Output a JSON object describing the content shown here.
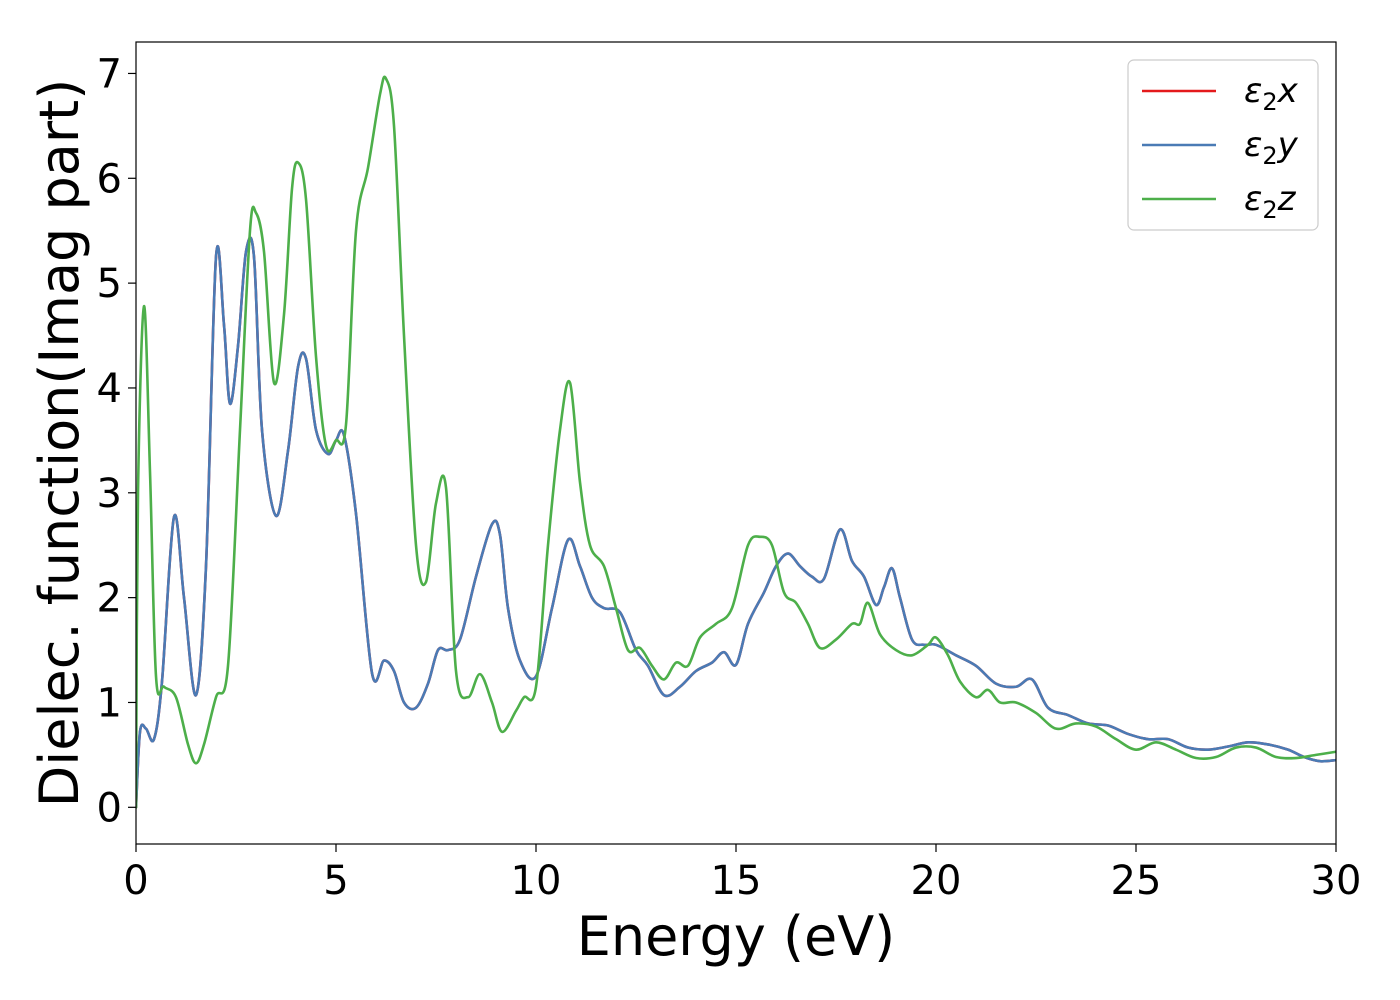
{
  "chart_data": {
    "type": "line",
    "title": "",
    "xlabel": "Energy (eV)",
    "ylabel": "Dielec. function(Imag part)",
    "xlim": [
      0,
      30
    ],
    "ylim": [
      -0.35,
      7.3
    ],
    "xticks": [
      0,
      5,
      10,
      15,
      20,
      25,
      30
    ],
    "yticks": [
      0,
      1,
      2,
      3,
      4,
      5,
      6,
      7
    ],
    "grid": false,
    "legend_position": "top-right",
    "series": [
      {
        "name": "ε2x",
        "legend": {
          "main": "ε",
          "sub": "2",
          "axis": "x"
        },
        "color": "#e41a1c",
        "x": [
          0,
          0.1,
          0.25,
          0.45,
          0.65,
          0.95,
          1.2,
          1.5,
          1.75,
          2.0,
          2.2,
          2.35,
          2.55,
          2.75,
          2.95,
          3.15,
          3.5,
          3.8,
          4.05,
          4.25,
          4.5,
          4.8,
          5.0,
          5.2,
          5.5,
          5.9,
          6.2,
          6.45,
          6.7,
          7.0,
          7.3,
          7.55,
          7.8,
          8.1,
          8.5,
          8.9,
          9.1,
          9.3,
          9.6,
          10.0,
          10.4,
          10.8,
          11.1,
          11.4,
          11.7,
          12.1,
          12.5,
          12.8,
          13.2,
          13.6,
          14.0,
          14.4,
          14.7,
          15.0,
          15.3,
          15.7,
          16.0,
          16.3,
          16.6,
          16.9,
          17.2,
          17.6,
          17.9,
          18.2,
          18.5,
          18.7,
          18.9,
          19.1,
          19.4,
          19.7,
          20.0,
          20.5,
          21.0,
          21.5,
          22.0,
          22.4,
          22.8,
          23.3,
          23.8,
          24.3,
          24.8,
          25.3,
          25.8,
          26.3,
          26.8,
          27.3,
          27.8,
          28.3,
          28.8,
          29.2,
          29.6,
          30.0
        ],
        "values": [
          0.0,
          0.72,
          0.75,
          0.65,
          1.2,
          2.77,
          2.0,
          1.07,
          2.3,
          5.25,
          4.6,
          3.85,
          4.4,
          5.3,
          5.25,
          3.6,
          2.78,
          3.4,
          4.2,
          4.28,
          3.6,
          3.37,
          3.5,
          3.55,
          2.8,
          1.28,
          1.4,
          1.3,
          1.0,
          0.95,
          1.18,
          1.5,
          1.5,
          1.6,
          2.2,
          2.7,
          2.6,
          1.9,
          1.4,
          1.25,
          1.9,
          2.55,
          2.3,
          2.0,
          1.9,
          1.86,
          1.5,
          1.35,
          1.07,
          1.15,
          1.3,
          1.38,
          1.48,
          1.36,
          1.75,
          2.05,
          2.3,
          2.42,
          2.3,
          2.2,
          2.18,
          2.65,
          2.35,
          2.2,
          1.93,
          2.1,
          2.28,
          2.0,
          1.6,
          1.55,
          1.55,
          1.45,
          1.35,
          1.18,
          1.15,
          1.22,
          0.95,
          0.88,
          0.8,
          0.78,
          0.7,
          0.65,
          0.65,
          0.57,
          0.55,
          0.58,
          0.62,
          0.6,
          0.55,
          0.48,
          0.44,
          0.45
        ]
      },
      {
        "name": "ε2y",
        "legend": {
          "main": "ε",
          "sub": "2",
          "axis": "y"
        },
        "color": "#4a7bb5",
        "x": [
          0,
          0.1,
          0.25,
          0.45,
          0.65,
          0.95,
          1.2,
          1.5,
          1.75,
          2.0,
          2.2,
          2.35,
          2.55,
          2.75,
          2.95,
          3.15,
          3.5,
          3.8,
          4.05,
          4.25,
          4.5,
          4.8,
          5.0,
          5.2,
          5.5,
          5.9,
          6.2,
          6.45,
          6.7,
          7.0,
          7.3,
          7.55,
          7.8,
          8.1,
          8.5,
          8.9,
          9.1,
          9.3,
          9.6,
          10.0,
          10.4,
          10.8,
          11.1,
          11.4,
          11.7,
          12.1,
          12.5,
          12.8,
          13.2,
          13.6,
          14.0,
          14.4,
          14.7,
          15.0,
          15.3,
          15.7,
          16.0,
          16.3,
          16.6,
          16.9,
          17.2,
          17.6,
          17.9,
          18.2,
          18.5,
          18.7,
          18.9,
          19.1,
          19.4,
          19.7,
          20.0,
          20.5,
          21.0,
          21.5,
          22.0,
          22.4,
          22.8,
          23.3,
          23.8,
          24.3,
          24.8,
          25.3,
          25.8,
          26.3,
          26.8,
          27.3,
          27.8,
          28.3,
          28.8,
          29.2,
          29.6,
          30.0
        ],
        "values": [
          0.0,
          0.72,
          0.75,
          0.65,
          1.2,
          2.77,
          2.0,
          1.07,
          2.3,
          5.25,
          4.6,
          3.85,
          4.4,
          5.3,
          5.25,
          3.6,
          2.78,
          3.4,
          4.2,
          4.28,
          3.6,
          3.37,
          3.5,
          3.55,
          2.8,
          1.28,
          1.4,
          1.3,
          1.0,
          0.95,
          1.18,
          1.5,
          1.5,
          1.6,
          2.2,
          2.7,
          2.6,
          1.9,
          1.4,
          1.25,
          1.9,
          2.55,
          2.3,
          2.0,
          1.9,
          1.86,
          1.5,
          1.35,
          1.07,
          1.15,
          1.3,
          1.38,
          1.48,
          1.36,
          1.75,
          2.05,
          2.3,
          2.42,
          2.3,
          2.2,
          2.18,
          2.65,
          2.35,
          2.2,
          1.93,
          2.1,
          2.28,
          2.0,
          1.6,
          1.55,
          1.55,
          1.45,
          1.35,
          1.18,
          1.15,
          1.22,
          0.95,
          0.88,
          0.8,
          0.78,
          0.7,
          0.65,
          0.65,
          0.57,
          0.55,
          0.58,
          0.62,
          0.6,
          0.55,
          0.48,
          0.44,
          0.45
        ]
      },
      {
        "name": "ε2z",
        "legend": {
          "main": "ε",
          "sub": "2",
          "axis": "z"
        },
        "color": "#4daf4a",
        "x": [
          0,
          0.05,
          0.2,
          0.35,
          0.5,
          0.7,
          1.0,
          1.3,
          1.5,
          1.7,
          2.0,
          2.3,
          2.6,
          2.85,
          3.0,
          3.2,
          3.45,
          3.7,
          3.9,
          4.05,
          4.25,
          4.5,
          4.75,
          5.0,
          5.25,
          5.5,
          5.8,
          6.1,
          6.25,
          6.45,
          6.7,
          7.0,
          7.25,
          7.5,
          7.75,
          8.0,
          8.3,
          8.6,
          8.9,
          9.15,
          9.5,
          9.7,
          10.0,
          10.3,
          10.6,
          10.85,
          11.1,
          11.35,
          11.7,
          12.0,
          12.3,
          12.6,
          12.9,
          13.2,
          13.5,
          13.8,
          14.1,
          14.5,
          14.9,
          15.3,
          15.6,
          15.9,
          16.2,
          16.5,
          16.8,
          17.1,
          17.5,
          17.9,
          18.1,
          18.3,
          18.6,
          19.0,
          19.4,
          19.8,
          20.0,
          20.3,
          20.6,
          21.0,
          21.3,
          21.6,
          22.0,
          22.5,
          23.0,
          23.5,
          24.0,
          24.5,
          25.0,
          25.5,
          26.0,
          26.5,
          27.0,
          27.5,
          28.0,
          28.5,
          29.0,
          29.5,
          30.0
        ],
        "values": [
          0.0,
          3.0,
          4.78,
          3.2,
          1.25,
          1.15,
          1.05,
          0.6,
          0.42,
          0.6,
          1.05,
          1.35,
          3.6,
          5.5,
          5.67,
          5.3,
          4.05,
          4.7,
          5.9,
          6.15,
          5.8,
          4.3,
          3.45,
          3.5,
          3.65,
          5.5,
          6.1,
          6.8,
          6.95,
          6.5,
          4.5,
          2.5,
          2.15,
          2.9,
          3.05,
          1.3,
          1.05,
          1.27,
          1.0,
          0.72,
          0.92,
          1.05,
          1.15,
          2.5,
          3.6,
          4.05,
          3.1,
          2.5,
          2.3,
          1.9,
          1.5,
          1.52,
          1.35,
          1.22,
          1.38,
          1.35,
          1.62,
          1.75,
          1.9,
          2.5,
          2.58,
          2.5,
          2.05,
          1.95,
          1.75,
          1.52,
          1.6,
          1.75,
          1.75,
          1.95,
          1.65,
          1.5,
          1.45,
          1.55,
          1.62,
          1.45,
          1.2,
          1.05,
          1.12,
          1.0,
          1.0,
          0.9,
          0.75,
          0.8,
          0.77,
          0.65,
          0.55,
          0.62,
          0.55,
          0.47,
          0.48,
          0.57,
          0.57,
          0.48,
          0.47,
          0.5,
          0.53
        ]
      }
    ]
  }
}
